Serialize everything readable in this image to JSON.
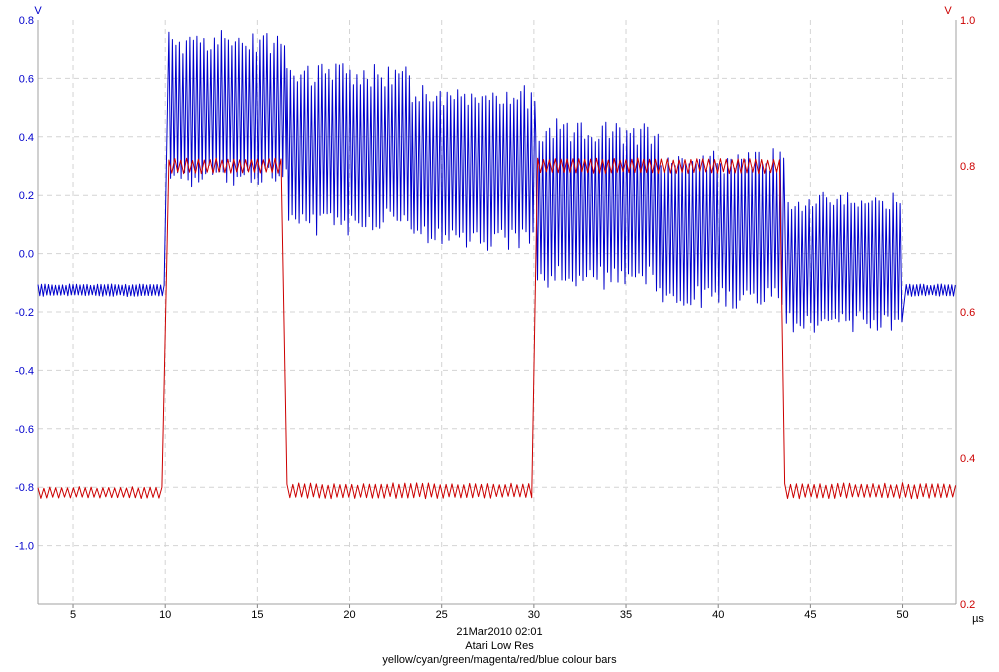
{
  "chart_data": {
    "type": "line",
    "x_unit": "µs",
    "x_ticks": [
      5,
      10,
      15,
      20,
      25,
      30,
      35,
      40,
      45,
      50
    ],
    "xlim": [
      3.1,
      52.9
    ],
    "left_axis": {
      "unit": "V",
      "ticks": [
        "0.8",
        "0.6",
        "0.4",
        "0.2",
        "0.0",
        "-0.2",
        "-0.4",
        "-0.6",
        "-0.8",
        "-1.0"
      ],
      "ylim": [
        -1.2,
        0.8
      ],
      "color": "#0000cc"
    },
    "right_axis": {
      "unit": "V",
      "ticks": [
        "1.0",
        "0.8",
        "0.6",
        "0.4",
        "0.2"
      ],
      "ylim": [
        0.2,
        1.0
      ],
      "color": "#cc0000"
    },
    "grid": true,
    "series": [
      {
        "axis": "left",
        "color": "#0000cc",
        "envelope": [
          {
            "x0": 3.1,
            "x1": 10.0,
            "low": -0.145,
            "high": -0.105
          },
          {
            "x0": 10.2,
            "x1": 16.6,
            "low": 0.25,
            "high": 0.74
          },
          {
            "x0": 16.6,
            "x1": 23.4,
            "low": 0.09,
            "high": 0.64
          },
          {
            "x0": 23.4,
            "x1": 30.1,
            "low": 0.03,
            "high": 0.55
          },
          {
            "x0": 30.1,
            "x1": 36.9,
            "low": -0.11,
            "high": 0.43
          },
          {
            "x0": 36.9,
            "x1": 43.6,
            "low": -0.17,
            "high": 0.34
          },
          {
            "x0": 43.6,
            "x1": 50.0,
            "low": -0.25,
            "high": 0.19
          },
          {
            "x0": 50.2,
            "x1": 52.9,
            "low": -0.145,
            "high": -0.105
          }
        ]
      },
      {
        "axis": "right",
        "color": "#cc0000",
        "envelope": [
          {
            "x0": 3.1,
            "x1": 9.9,
            "low": 0.345,
            "high": 0.36
          },
          {
            "x0": 10.2,
            "x1": 16.4,
            "low": 0.79,
            "high": 0.81
          },
          {
            "x0": 16.6,
            "x1": 30.0,
            "low": 0.345,
            "high": 0.365
          },
          {
            "x0": 30.2,
            "x1": 43.4,
            "low": 0.79,
            "high": 0.81
          },
          {
            "x0": 43.6,
            "x1": 52.9,
            "low": 0.345,
            "high": 0.365
          }
        ]
      }
    ]
  },
  "caption": {
    "datetime": "21Mar2010  02:01",
    "title": "Atari Low Res",
    "description": "yellow/cyan/green/magenta/red/blue colour bars"
  }
}
